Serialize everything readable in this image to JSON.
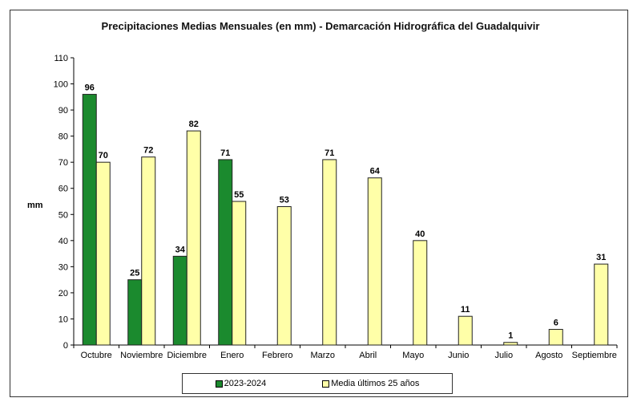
{
  "chart_data": {
    "type": "bar",
    "title": "Precipitaciones Medias Mensuales (en mm) - Demarcación Hidrográfica del Guadalquivir",
    "ylabel": "mm",
    "xlabel": "",
    "ylim": [
      0,
      110
    ],
    "yticks": [
      0,
      10,
      20,
      30,
      40,
      50,
      60,
      70,
      80,
      90,
      100,
      110
    ],
    "grid": false,
    "legend_position": "bottom",
    "categories": [
      "Octubre",
      "Noviembre",
      "Diciembre",
      "Enero",
      "Febrero",
      "Marzo",
      "Abril",
      "Mayo",
      "Junio",
      "Julio",
      "Agosto",
      "Septiembre"
    ],
    "series": [
      {
        "name": "2023-2024",
        "color": "#1b8a2e",
        "values": [
          96,
          25,
          34,
          71,
          null,
          null,
          null,
          null,
          null,
          null,
          null,
          null
        ]
      },
      {
        "name": "Media últimos 25 años",
        "color": "#ffffa8",
        "values": [
          70,
          72,
          82,
          55,
          53,
          71,
          64,
          40,
          11,
          1,
          6,
          31
        ]
      }
    ]
  }
}
